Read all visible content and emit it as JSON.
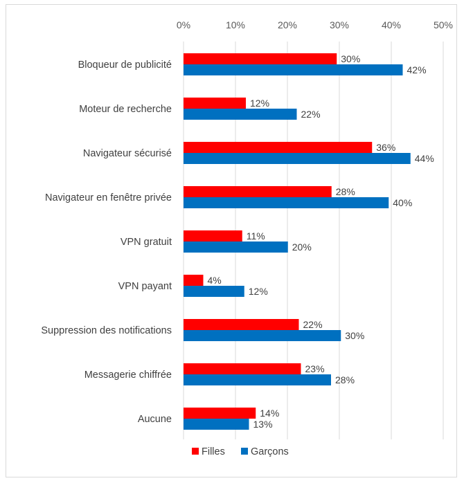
{
  "chart_data": {
    "type": "bar",
    "orientation": "horizontal",
    "categories": [
      "Bloqueur de publicité",
      "Moteur de recherche",
      "Navigateur sécurisé",
      "Navigateur en fenêtre privée",
      "VPN gratuit",
      "VPN payant",
      "Suppression des notifications",
      "Messagerie chiffrée",
      "Aucune"
    ],
    "series": [
      {
        "name": "Filles",
        "color": "#ff0000",
        "values": [
          0.295,
          0.12,
          0.363,
          0.285,
          0.113,
          0.038,
          0.222,
          0.226,
          0.139
        ]
      },
      {
        "name": "Garçons",
        "color": "#0070c0",
        "values": [
          0.422,
          0.218,
          0.437,
          0.395,
          0.201,
          0.117,
          0.303,
          0.284,
          0.126
        ]
      }
    ],
    "data_labels": [
      [
        "30%",
        "12%",
        "36%",
        "28%",
        "11%",
        "4%",
        "22%",
        "23%",
        "14%"
      ],
      [
        "42%",
        "22%",
        "44%",
        "40%",
        "20%",
        "12%",
        "30%",
        "28%",
        "13%"
      ]
    ],
    "x_ticks": [
      0,
      0.1,
      0.2,
      0.3,
      0.4,
      0.5
    ],
    "x_tick_labels": [
      "0%",
      "10%",
      "20%",
      "30%",
      "40%",
      "50%"
    ],
    "xlim": [
      0,
      0.5
    ],
    "x_axis_position": "top",
    "grid": "vertical",
    "legend": "bottom",
    "title": "",
    "xlabel": "",
    "ylabel": ""
  }
}
